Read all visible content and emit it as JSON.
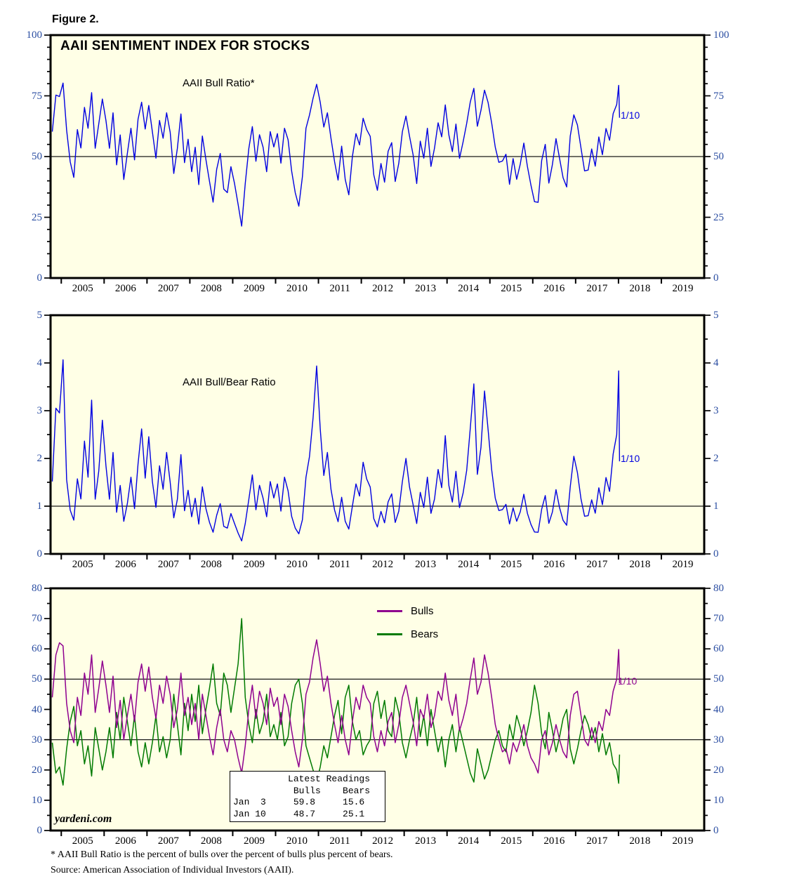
{
  "figure_label": "Figure 2.",
  "title": "AAII SENTIMENT INDEX FOR STOCKS",
  "watermark": "yardeni.com",
  "footnotes": [
    "* AAII Bull Ratio is the percent of bulls over the percent of bulls plus percent of bears.",
    "Source: American Association of Individual Investors (AAII)."
  ],
  "colors": {
    "plot_bg": "#FFFFE6",
    "axis": "#000000",
    "ref_line": "#1a1a1a",
    "tick_label": "#2B4EA2",
    "blue_line": "#0000E0",
    "bulls_purple": "#8F008F",
    "bears_green": "#007A00"
  },
  "chart_data": {
    "type": "line",
    "x_axis": {
      "min": 2004.75,
      "max": 2020.0,
      "years": [
        "2005",
        "2006",
        "2007",
        "2008",
        "2009",
        "2010",
        "2011",
        "2012",
        "2013",
        "2014",
        "2015",
        "2016",
        "2017",
        "2018",
        "2019"
      ]
    },
    "sampling": {
      "note": "monthly estimates Oct-2004 through Dec-2017, then weekly readings Jan-3-2018 and Jan-10-2018",
      "x_monthly_start": 2004.7917,
      "x_monthly_step": 0.0833333,
      "n_monthly": 159,
      "x_extra": [
        2018.005,
        2018.025
      ]
    },
    "series": {
      "bulls_pct": [
        44,
        58,
        62,
        61,
        42,
        33,
        29,
        44,
        38,
        52,
        45,
        58,
        39,
        47,
        56,
        48,
        39,
        51,
        34,
        43,
        30,
        38,
        45,
        36,
        49,
        55,
        46,
        54,
        44,
        37,
        48,
        42,
        51,
        45,
        34,
        40,
        52,
        38,
        44,
        35,
        42,
        30,
        45,
        38,
        31,
        25,
        34,
        40,
        30,
        26,
        33,
        30,
        24,
        19,
        28,
        40,
        48,
        37,
        46,
        42,
        35,
        47,
        41,
        44,
        35,
        45,
        41,
        33,
        26,
        21,
        30,
        45,
        49,
        57,
        63,
        55,
        46,
        51,
        42,
        35,
        29,
        38,
        30,
        25,
        36,
        44,
        40,
        48,
        44,
        42,
        31,
        26,
        33,
        28,
        36,
        39,
        29,
        35,
        44,
        48,
        42,
        36,
        28,
        40,
        37,
        45,
        34,
        38,
        46,
        43,
        52,
        43,
        38,
        45,
        33,
        37,
        42,
        50,
        57,
        45,
        49,
        58,
        52,
        44,
        35,
        30,
        26,
        27,
        22,
        29,
        26,
        30,
        35,
        28,
        24,
        22,
        19,
        30,
        33,
        25,
        29,
        35,
        30,
        26,
        24,
        38,
        45,
        46,
        38,
        30,
        28,
        34,
        29,
        36,
        33,
        40,
        38,
        46,
        50,
        59.8,
        48.7
      ],
      "bears_pct": [
        29,
        19,
        21,
        15,
        27,
        36,
        41,
        28,
        33,
        22,
        28,
        18,
        34,
        27,
        20,
        26,
        34,
        24,
        39,
        30,
        44,
        36,
        28,
        38,
        26,
        21,
        29,
        22,
        29,
        38,
        26,
        31,
        24,
        30,
        45,
        35,
        25,
        42,
        33,
        45,
        36,
        48,
        32,
        40,
        47,
        55,
        42,
        38,
        52,
        48,
        39,
        47,
        55,
        70,
        44,
        35,
        29,
        40,
        32,
        36,
        45,
        31,
        35,
        30,
        39,
        28,
        31,
        42,
        48,
        50,
        42,
        28,
        24,
        20,
        16,
        21,
        28,
        24,
        31,
        38,
        43,
        32,
        44,
        48,
        36,
        30,
        33,
        25,
        28,
        30,
        42,
        46,
        37,
        43,
        33,
        31,
        44,
        39,
        29,
        24,
        30,
        35,
        44,
        31,
        38,
        28,
        40,
        33,
        26,
        31,
        21,
        30,
        35,
        26,
        34,
        29,
        24,
        19,
        16,
        27,
        22,
        17,
        20,
        25,
        30,
        33,
        28,
        26,
        35,
        30,
        38,
        34,
        28,
        33,
        39,
        48,
        42,
        32,
        27,
        39,
        33,
        26,
        31,
        37,
        40,
        27,
        22,
        27,
        33,
        38,
        35,
        30,
        34,
        26,
        32,
        25,
        29,
        22,
        20,
        15.6,
        25.1
      ]
    },
    "panels": [
      {
        "label": "AAII Bull Ratio*",
        "derive": "bull_ratio_pct",
        "formula": "100 * bulls / (bulls + bears)",
        "ylim": [
          0,
          100
        ],
        "yticks": [
          0,
          25,
          50,
          75,
          100
        ],
        "minor_step": 5,
        "ref_lines": [
          50
        ],
        "annotation_label": "1/10",
        "annotation_value": 66.0,
        "line_color_key": "blue_line"
      },
      {
        "label": "AAII Bull/Bear Ratio",
        "derive": "bull_bear",
        "formula": "bulls / bears",
        "ylim": [
          0,
          5
        ],
        "yticks": [
          0,
          1,
          2,
          3,
          4,
          5
        ],
        "minor_step": 0.5,
        "ref_lines": [
          1
        ],
        "annotation_label": "1/10",
        "annotation_value": 1.94,
        "line_color_key": "blue_line"
      },
      {
        "derive": "raw_pair",
        "ylim": [
          0,
          80
        ],
        "yticks": [
          0,
          10,
          20,
          30,
          40,
          50,
          60,
          70,
          80
        ],
        "minor_step": 5,
        "ref_lines": [
          50,
          30
        ],
        "annotation_label": "1/10",
        "annotation_value": 48.7,
        "legend": [
          {
            "name": "Bulls",
            "color_key": "bulls_purple"
          },
          {
            "name": "Bears",
            "color_key": "bears_green"
          }
        ]
      }
    ],
    "readings_box": {
      "lines": [
        "          Latest Readings",
        "           Bulls    Bears",
        "Jan  3     59.8     15.6",
        "Jan 10     48.7     25.1"
      ]
    }
  }
}
